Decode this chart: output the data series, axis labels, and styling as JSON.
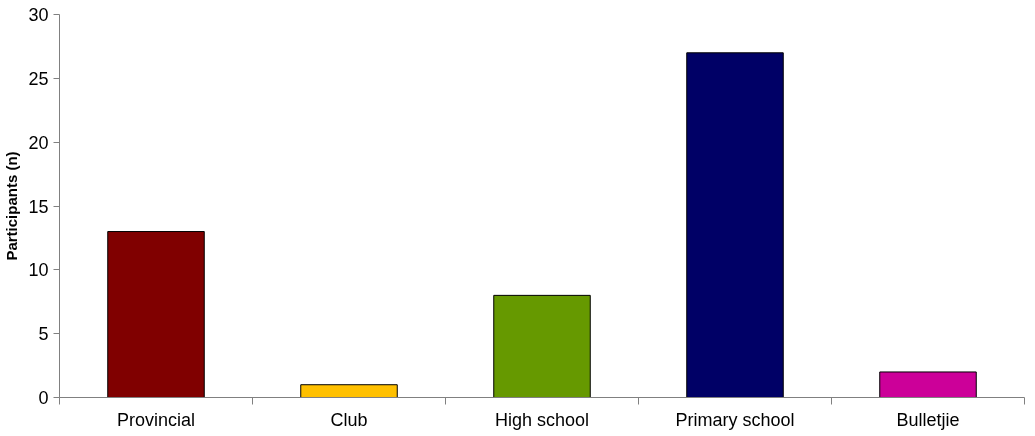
{
  "chart_data": {
    "type": "bar",
    "ylabel": "Participants (n)",
    "categories": [
      "Provincial",
      "Club",
      "High school",
      "Primary school",
      "Bulletjie"
    ],
    "values": [
      13,
      1,
      8,
      27,
      2
    ],
    "colors": [
      "#800000",
      "#ffc000",
      "#669900",
      "#000066",
      "#cc0099"
    ],
    "ylim": [
      0,
      30
    ],
    "yticks": [
      0,
      5,
      10,
      15,
      20,
      25,
      30
    ],
    "grid": false
  }
}
